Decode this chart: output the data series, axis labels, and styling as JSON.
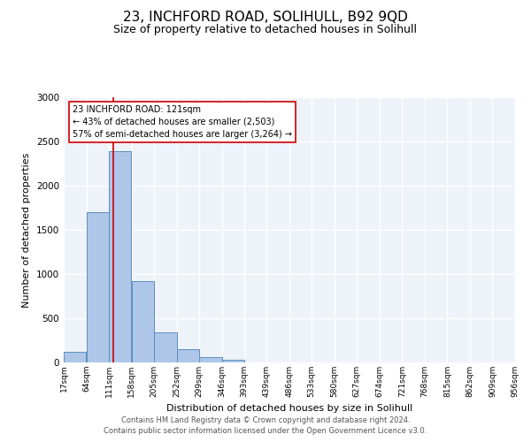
{
  "title": "23, INCHFORD ROAD, SOLIHULL, B92 9QD",
  "subtitle": "Size of property relative to detached houses in Solihull",
  "xlabel": "Distribution of detached houses by size in Solihull",
  "ylabel": "Number of detached properties",
  "bin_edges": [
    17,
    64,
    111,
    158,
    205,
    252,
    299,
    346,
    393,
    439,
    486,
    533,
    580,
    627,
    674,
    721,
    768,
    815,
    862,
    909,
    956
  ],
  "bar_heights": [
    120,
    1700,
    2390,
    920,
    340,
    155,
    65,
    30,
    0,
    0,
    0,
    0,
    0,
    0,
    0,
    0,
    0,
    0,
    0,
    0
  ],
  "bar_color": "#aec6e8",
  "bar_edgecolor": "#5a8fc0",
  "background_color": "#eef2f9",
  "grid_color": "#ffffff",
  "vline_x": 121,
  "vline_color": "#cc0000",
  "annotation_line1": "23 INCHFORD ROAD: 121sqm",
  "annotation_line2": "← 43% of detached houses are smaller (2,503)",
  "annotation_line3": "57% of semi-detached houses are larger (3,264) →",
  "footer_line1": "Contains HM Land Registry data © Crown copyright and database right 2024.",
  "footer_line2": "Contains public sector information licensed under the Open Government Licence v3.0.",
  "tick_labels": [
    "17sqm",
    "64sqm",
    "111sqm",
    "158sqm",
    "205sqm",
    "252sqm",
    "299sqm",
    "346sqm",
    "393sqm",
    "439sqm",
    "486sqm",
    "533sqm",
    "580sqm",
    "627sqm",
    "674sqm",
    "721sqm",
    "768sqm",
    "815sqm",
    "862sqm",
    "909sqm",
    "956sqm"
  ],
  "ylim": [
    0,
    3000
  ],
  "yticks": [
    0,
    500,
    1000,
    1500,
    2000,
    2500,
    3000
  ],
  "title_fontsize": 11,
  "subtitle_fontsize": 9,
  "figsize": [
    6.0,
    5.0
  ],
  "dpi": 100
}
